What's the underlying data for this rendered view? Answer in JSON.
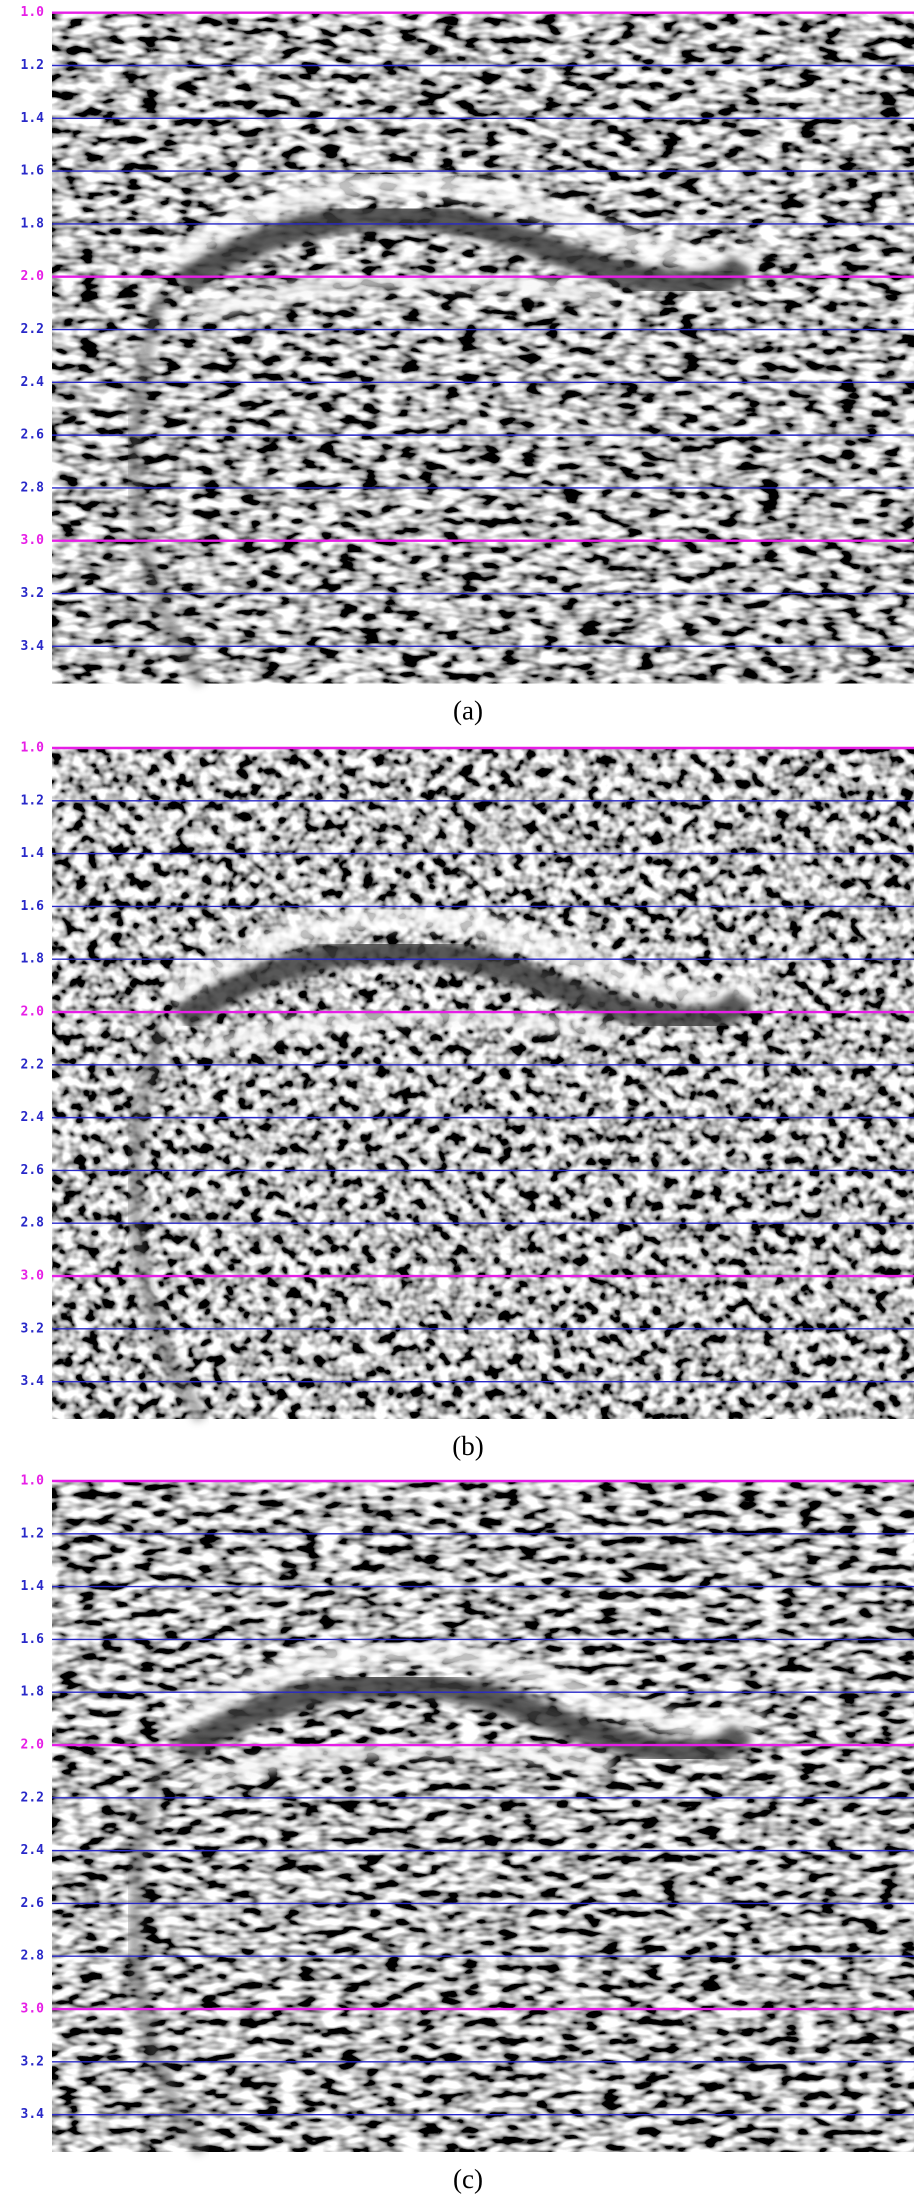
{
  "panels": [
    {
      "caption": "(a)",
      "ylim": [
        1,
        3.54
      ],
      "yticks": [
        {
          "value": 1,
          "label": "1.0"
        },
        1.2,
        1.4,
        1.6,
        1.8,
        {
          "value": 2,
          "label": "2.0"
        },
        2.2,
        2.4,
        2.6,
        2.8,
        {
          "value": 3,
          "label": "3.0"
        },
        3.2,
        3.4
      ]
    },
    {
      "caption": "(b)",
      "ylim": [
        1,
        3.54
      ],
      "yticks": [
        {
          "value": 1,
          "label": "1.0"
        },
        1.2,
        1.4,
        1.6,
        1.8,
        {
          "value": 2,
          "label": "2.0"
        },
        2.2,
        2.4,
        2.6,
        2.8,
        {
          "value": 3,
          "label": "3.0"
        },
        3.2,
        3.4
      ]
    },
    {
      "caption": "(c)",
      "ylim": [
        1,
        3.54
      ],
      "yticks": [
        {
          "value": 1,
          "label": "1.0"
        },
        1.2,
        1.4,
        1.6,
        1.8,
        {
          "value": 2,
          "label": "2.0"
        },
        2.2,
        2.4,
        2.6,
        2.8,
        {
          "value": 3,
          "label": "3.0"
        },
        3.2,
        3.4
      ]
    }
  ],
  "grid_colors": {
    "major": "#e61ee6",
    "minor": "#2828c8"
  }
}
